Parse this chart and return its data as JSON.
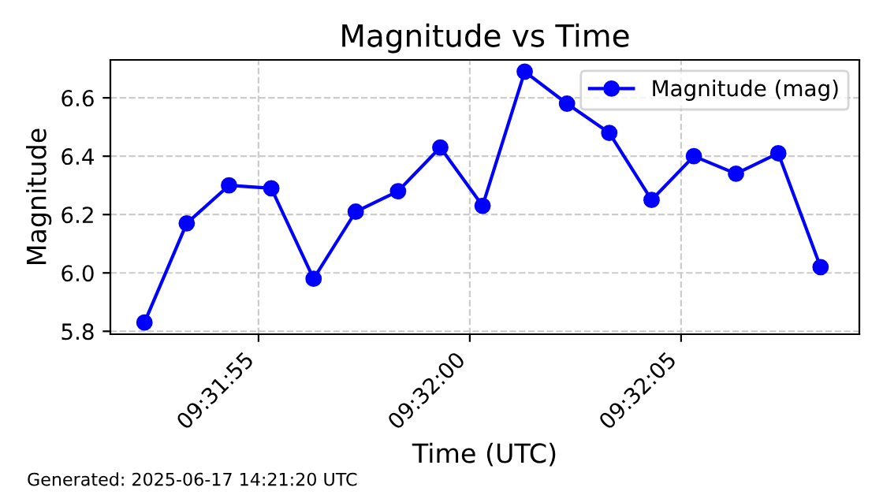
{
  "chart_data": {
    "type": "line",
    "title": "Magnitude vs Time",
    "xlabel": "Time (UTC)",
    "ylabel": "Magnitude",
    "annotations": [
      "Generated: 2025-06-17 14:21:20 UTC"
    ],
    "x": [
      9.531194,
      9.531472,
      9.53175,
      9.532028,
      9.532306,
      9.532583,
      9.532861,
      9.533139,
      9.533417,
      9.533694,
      9.533972,
      9.53425,
      9.534528,
      9.534806,
      9.535083,
      9.535361,
      9.535639
    ],
    "series": [
      {
        "name": "Magnitude (mag)",
        "color": "#0000ff",
        "values": [
          5.83,
          6.17,
          6.3,
          6.29,
          5.98,
          6.21,
          6.28,
          6.43,
          6.23,
          6.69,
          6.58,
          6.48,
          6.25,
          6.4,
          6.34,
          6.41,
          6.02
        ]
      }
    ],
    "xlim": [
      9.53097,
      9.535894
    ],
    "ylim": [
      5.79,
      6.73
    ],
    "xticks": [
      {
        "value": 9.531944,
        "label": "09:31:55"
      },
      {
        "value": 9.533333,
        "label": "09:32:00"
      },
      {
        "value": 9.534722,
        "label": "09:32:05"
      }
    ],
    "yticks": [
      {
        "value": 5.8,
        "label": "5.8"
      },
      {
        "value": 6.0,
        "label": "6.0"
      },
      {
        "value": 6.2,
        "label": "6.2"
      },
      {
        "value": 6.4,
        "label": "6.4"
      },
      {
        "value": 6.6,
        "label": "6.6"
      }
    ],
    "grid": true,
    "legend": "top right",
    "marker": "circle",
    "line_style": "solid"
  }
}
